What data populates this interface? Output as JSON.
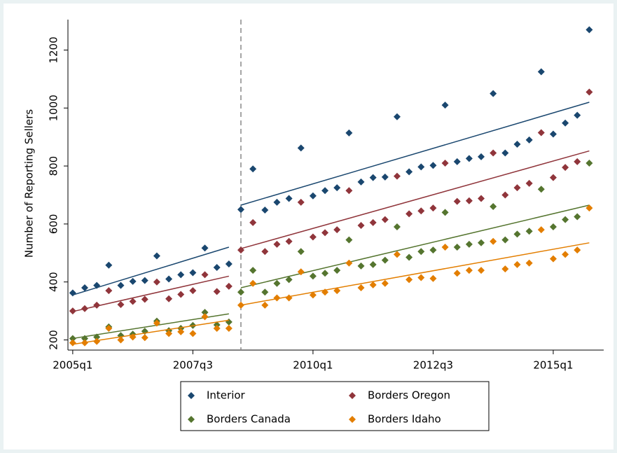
{
  "chart_data": {
    "type": "scatter",
    "y_label": "Number of Reporting Sellers",
    "x": [
      180,
      181,
      182,
      183,
      184,
      185,
      186,
      187,
      188,
      189,
      190,
      191,
      192,
      193,
      194,
      195,
      196,
      197,
      198,
      199,
      200,
      201,
      202,
      203,
      204,
      205,
      206,
      207,
      208,
      209,
      210,
      211,
      212,
      213,
      214,
      215,
      216,
      217,
      218,
      219,
      220,
      221,
      222,
      223
    ],
    "xlim": [
      179.6,
      224.2
    ],
    "xticks": [
      {
        "value": 180,
        "label": "2005q1"
      },
      {
        "value": 190,
        "label": "2007q3"
      },
      {
        "value": 200,
        "label": "2010q1"
      },
      {
        "value": 210,
        "label": "2012q3"
      },
      {
        "value": 220,
        "label": "2015q1"
      }
    ],
    "ylim": [
      165,
      1305
    ],
    "yticks": [
      200,
      400,
      600,
      800,
      1000,
      1200
    ],
    "vline": 194,
    "fit_segments_x": [
      [
        180,
        193
      ],
      [
        194,
        223
      ]
    ],
    "series": [
      {
        "name": "Interior",
        "color": "#1a476f",
        "values": [
          362,
          380,
          388,
          458,
          388,
          402,
          405,
          490,
          410,
          425,
          432,
          517,
          450,
          462,
          650,
          790,
          648,
          675,
          688,
          862,
          697,
          715,
          725,
          914,
          745,
          760,
          762,
          970,
          780,
          797,
          802,
          1010,
          815,
          826,
          832,
          1050,
          845,
          875,
          890,
          1125,
          910,
          948,
          975,
          1270
        ],
        "fit": [
          [
            355,
            520
          ],
          [
            665,
            1020
          ]
        ]
      },
      {
        "name": "Borders Oregon",
        "color": "#90353b",
        "values": [
          300,
          308,
          320,
          370,
          322,
          333,
          340,
          400,
          342,
          357,
          370,
          425,
          367,
          385,
          510,
          605,
          505,
          530,
          540,
          675,
          555,
          570,
          580,
          715,
          595,
          605,
          615,
          765,
          635,
          645,
          655,
          810,
          678,
          680,
          688,
          845,
          700,
          725,
          740,
          915,
          760,
          795,
          815,
          1055
        ],
        "fit": [
          [
            298,
            420
          ],
          [
            515,
            852
          ]
        ]
      },
      {
        "name": "Borders Canada",
        "color": "#55752f",
        "values": [
          205,
          205,
          210,
          245,
          215,
          220,
          230,
          265,
          232,
          240,
          250,
          295,
          252,
          262,
          365,
          440,
          365,
          395,
          408,
          505,
          420,
          430,
          440,
          545,
          455,
          460,
          475,
          590,
          485,
          505,
          510,
          640,
          520,
          530,
          535,
          660,
          545,
          565,
          575,
          720,
          590,
          615,
          625,
          810
        ],
        "fit": [
          [
            205,
            290
          ],
          [
            380,
            665
          ]
        ]
      },
      {
        "name": "Borders Idaho",
        "color": "#e37e00",
        "values": [
          190,
          190,
          195,
          240,
          200,
          210,
          208,
          258,
          222,
          228,
          222,
          280,
          240,
          240,
          320,
          395,
          320,
          345,
          345,
          435,
          355,
          365,
          370,
          465,
          380,
          390,
          395,
          495,
          408,
          415,
          412,
          520,
          430,
          440,
          440,
          540,
          445,
          460,
          465,
          580,
          480,
          495,
          510,
          655
        ],
        "fit": [
          [
            185,
            268
          ],
          [
            320,
            535
          ]
        ]
      }
    ]
  }
}
